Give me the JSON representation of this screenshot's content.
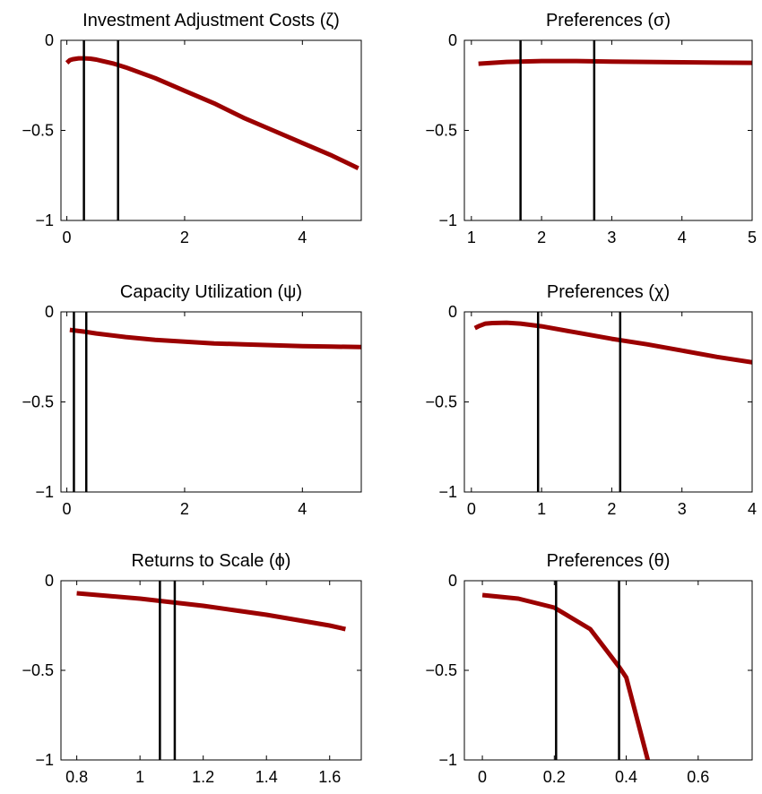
{
  "colors": {
    "series": "#9b0000",
    "vline": "#000000"
  },
  "chart_data": [
    {
      "type": "line",
      "title": "Investment Adjustment Costs (ζ)",
      "xlim": [
        -0.1,
        5
      ],
      "ylim": [
        -1,
        0
      ],
      "xticks": [
        0,
        2,
        4
      ],
      "xtick_labels": [
        "0",
        "2",
        "4"
      ],
      "yticks": [
        -1,
        -0.5,
        0
      ],
      "ytick_labels": [
        "−1",
        "−0.5",
        "0"
      ],
      "vlines": [
        0.29,
        0.87
      ],
      "series": [
        {
          "x": [
            0,
            0.05,
            0.1,
            0.2,
            0.3,
            0.4,
            0.5,
            0.6,
            0.8,
            1.0,
            1.5,
            2.0,
            2.5,
            3.0,
            3.5,
            4.0,
            4.5,
            4.95
          ],
          "y": [
            -0.125,
            -0.11,
            -0.105,
            -0.1,
            -0.1,
            -0.102,
            -0.107,
            -0.115,
            -0.13,
            -0.15,
            -0.21,
            -0.28,
            -0.35,
            -0.43,
            -0.5,
            -0.57,
            -0.64,
            -0.71
          ]
        }
      ]
    },
    {
      "type": "line",
      "title": "Preferences (σ)",
      "xlim": [
        0.9,
        5
      ],
      "ylim": [
        -1,
        0
      ],
      "xticks": [
        1,
        2,
        3,
        4,
        5
      ],
      "xtick_labels": [
        "1",
        "2",
        "3",
        "4",
        "5"
      ],
      "yticks": [
        -1,
        -0.5,
        0
      ],
      "ytick_labels": [
        "−1",
        "−0.5",
        "0"
      ],
      "vlines": [
        1.7,
        2.75
      ],
      "series": [
        {
          "x": [
            1.1,
            1.5,
            2.0,
            2.5,
            3.0,
            3.5,
            4.0,
            4.5,
            5.0
          ],
          "y": [
            -0.13,
            -0.12,
            -0.115,
            -0.115,
            -0.118,
            -0.12,
            -0.122,
            -0.124,
            -0.125
          ]
        }
      ]
    },
    {
      "type": "line",
      "title": "Capacity Utilization (ψ)",
      "xlim": [
        -0.1,
        5
      ],
      "ylim": [
        -1,
        0
      ],
      "xticks": [
        0,
        2,
        4
      ],
      "xtick_labels": [
        "0",
        "2",
        "4"
      ],
      "yticks": [
        -1,
        -0.5,
        0
      ],
      "ytick_labels": [
        "−1",
        "−0.5",
        "0"
      ],
      "vlines": [
        0.12,
        0.33
      ],
      "series": [
        {
          "x": [
            0.05,
            0.3,
            0.5,
            1.0,
            1.5,
            2.0,
            2.5,
            3.0,
            3.5,
            4.0,
            4.5,
            5.0
          ],
          "y": [
            -0.1,
            -0.11,
            -0.12,
            -0.14,
            -0.155,
            -0.165,
            -0.175,
            -0.18,
            -0.185,
            -0.19,
            -0.193,
            -0.195
          ]
        }
      ]
    },
    {
      "type": "line",
      "title": "Preferences (χ)",
      "xlim": [
        -0.1,
        4
      ],
      "ylim": [
        -1,
        0
      ],
      "xticks": [
        0,
        1,
        2,
        3,
        4
      ],
      "xtick_labels": [
        "0",
        "1",
        "2",
        "3",
        "4"
      ],
      "yticks": [
        -1,
        -0.5,
        0
      ],
      "ytick_labels": [
        "−1",
        "−0.5",
        "0"
      ],
      "vlines": [
        0.95,
        2.12
      ],
      "series": [
        {
          "x": [
            0.05,
            0.1,
            0.2,
            0.3,
            0.5,
            0.7,
            1.0,
            1.5,
            2.0,
            2.5,
            3.0,
            3.5,
            4.0
          ],
          "y": [
            -0.09,
            -0.08,
            -0.065,
            -0.062,
            -0.06,
            -0.065,
            -0.08,
            -0.115,
            -0.15,
            -0.18,
            -0.215,
            -0.25,
            -0.28
          ]
        }
      ]
    },
    {
      "type": "line",
      "title": "Returns to Scale (ϕ)",
      "xlim": [
        0.75,
        1.7
      ],
      "ylim": [
        -1,
        0
      ],
      "xticks": [
        0.8,
        1.0,
        1.2,
        1.4,
        1.6
      ],
      "xtick_labels": [
        "0.8",
        "1",
        "1.2",
        "1.4",
        "1.6"
      ],
      "yticks": [
        -1,
        -0.5,
        0
      ],
      "ytick_labels": [
        "−1",
        "−0.5",
        "0"
      ],
      "vlines": [
        1.063,
        1.11
      ],
      "series": [
        {
          "x": [
            0.8,
            0.9,
            1.0,
            1.1,
            1.2,
            1.3,
            1.4,
            1.5,
            1.6,
            1.65
          ],
          "y": [
            -0.07,
            -0.085,
            -0.1,
            -0.12,
            -0.14,
            -0.165,
            -0.19,
            -0.22,
            -0.25,
            -0.27
          ]
        }
      ]
    },
    {
      "type": "line",
      "title": "Preferences (θ)",
      "xlim": [
        -0.05,
        0.75
      ],
      "ylim": [
        -1,
        0
      ],
      "xticks": [
        0,
        0.2,
        0.4,
        0.6
      ],
      "xtick_labels": [
        "0",
        "0.2",
        "0.4",
        "0.6"
      ],
      "yticks": [
        -1,
        -0.5,
        0
      ],
      "ytick_labels": [
        "−1",
        "−0.5",
        "0"
      ],
      "vlines": [
        0.205,
        0.38
      ],
      "series": [
        {
          "x": [
            0,
            0.1,
            0.2,
            0.3,
            0.38,
            0.4,
            0.46
          ],
          "y": [
            -0.08,
            -0.1,
            -0.15,
            -0.27,
            -0.48,
            -0.54,
            -1.0
          ]
        }
      ]
    }
  ]
}
